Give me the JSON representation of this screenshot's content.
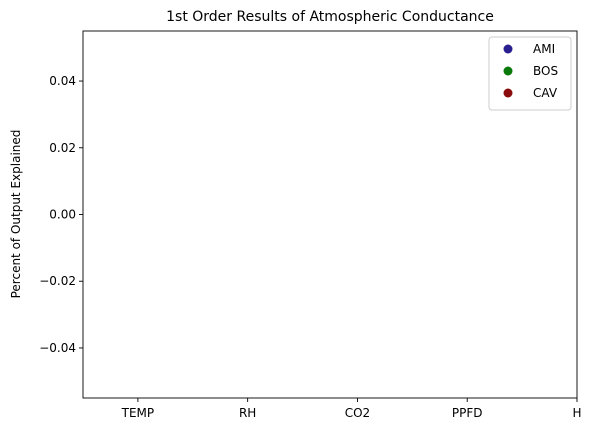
{
  "chart_data": {
    "type": "scatter",
    "title": "1st Order Results of Atmospheric Conductance",
    "xlabel": "",
    "ylabel": "Percent of Output Explained",
    "categories": [
      "TEMP",
      "RH",
      "CO2",
      "PPFD",
      "H"
    ],
    "x_range": [
      -0.5,
      4
    ],
    "ylim": [
      -0.055,
      0.055
    ],
    "yticks": [
      -0.04,
      -0.02,
      0.0,
      0.02,
      0.04
    ],
    "ytick_labels": [
      "−0.04",
      "−0.02",
      "0.00",
      "0.02",
      "0.04"
    ],
    "grid": false,
    "legend_position": "top-right",
    "series": [
      {
        "name": "AMI",
        "color": "#2a1f8f",
        "values": []
      },
      {
        "name": "BOS",
        "color": "#0a7a0a",
        "values": []
      },
      {
        "name": "CAV",
        "color": "#8b0c0c",
        "values": []
      }
    ]
  }
}
